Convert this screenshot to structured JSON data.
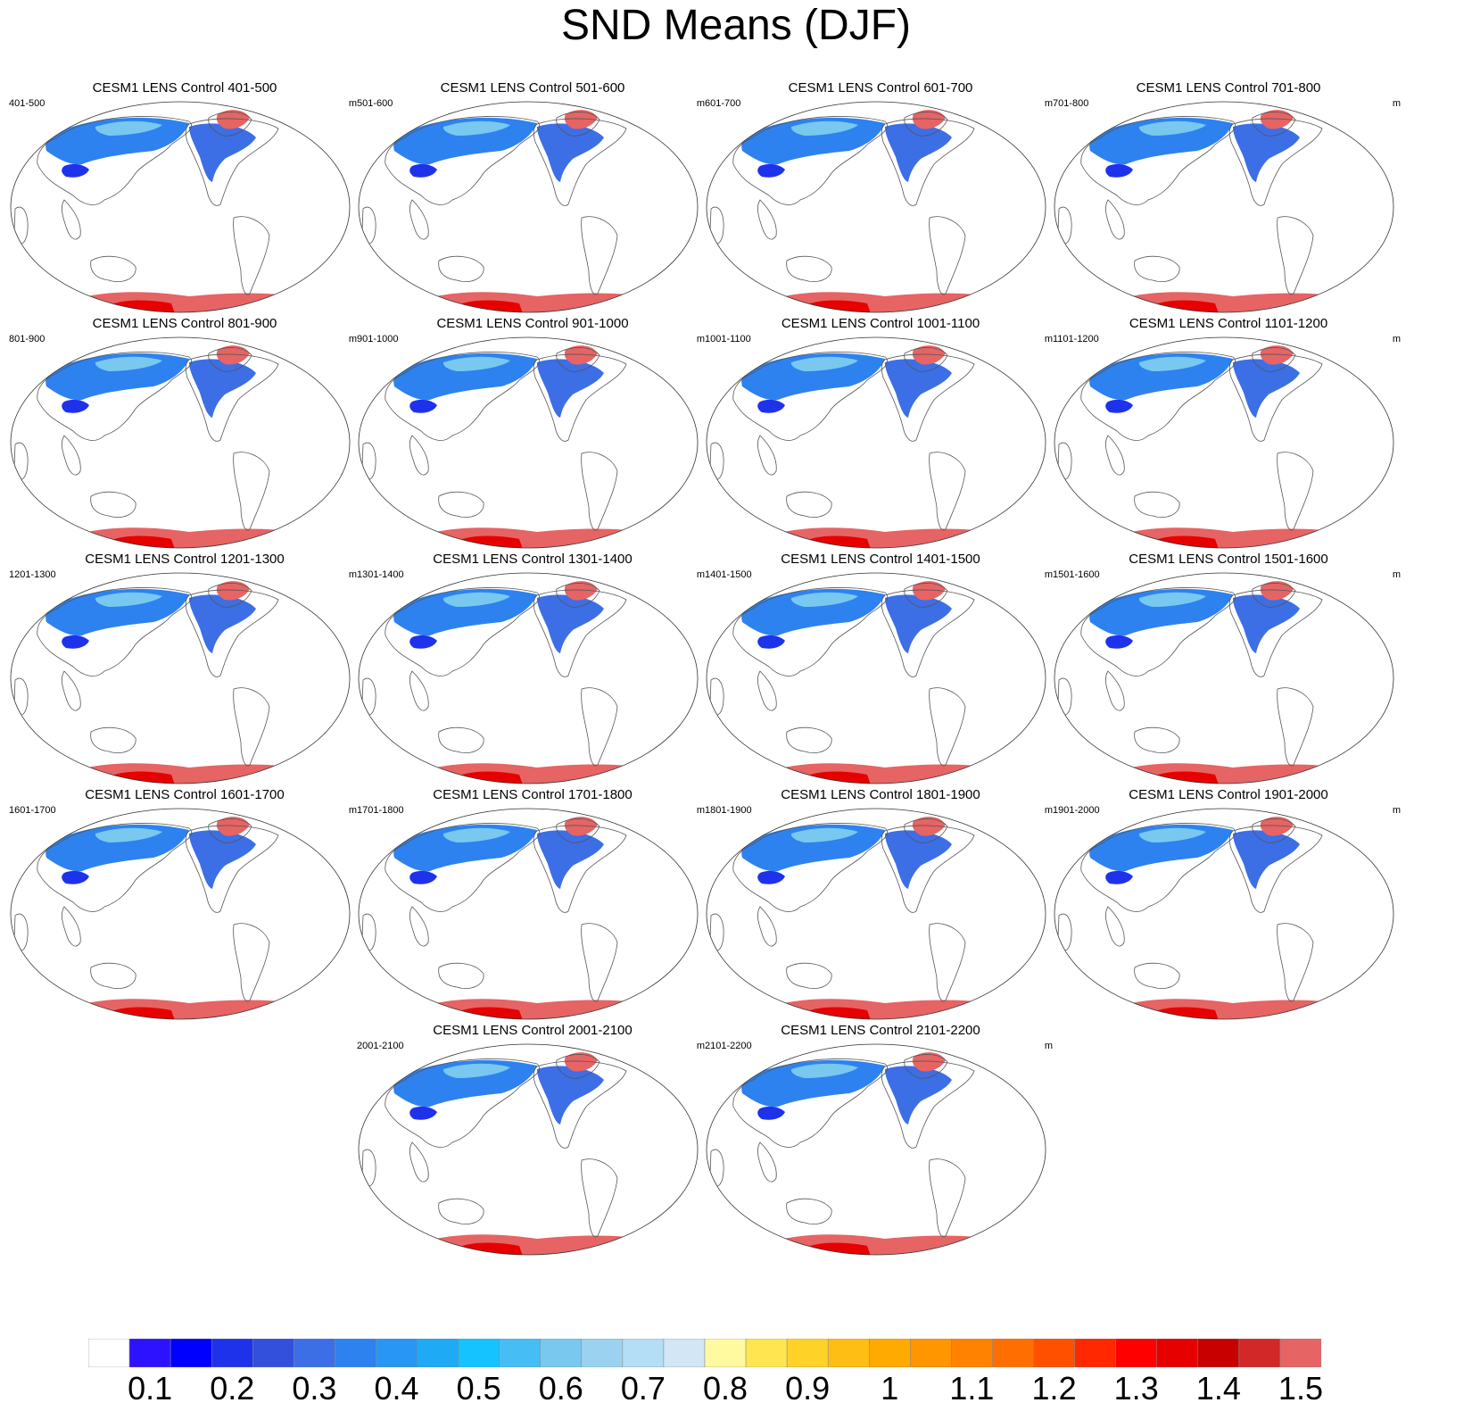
{
  "chart_data": {
    "type": "heatmap",
    "title": "SND Means (DJF)",
    "variable": "SND",
    "units": "m",
    "projection": "Robinson, centered Pacific",
    "panels": [
      {
        "title": "CESM1 LENS Control 401-500",
        "left_label": "401-500",
        "units": "m"
      },
      {
        "title": "CESM1 LENS Control 501-600",
        "left_label": "501-600",
        "units": "m"
      },
      {
        "title": "CESM1 LENS Control 601-700",
        "left_label": "601-700",
        "units": "m"
      },
      {
        "title": "CESM1 LENS Control 701-800",
        "left_label": "701-800",
        "units": "m"
      },
      {
        "title": "CESM1 LENS Control 801-900",
        "left_label": "801-900",
        "units": "m"
      },
      {
        "title": "CESM1 LENS Control 901-1000",
        "left_label": "901-1000",
        "units": "m"
      },
      {
        "title": "CESM1 LENS Control 1001-1100",
        "left_label": "1001-1100",
        "units": "m"
      },
      {
        "title": "CESM1 LENS Control 1101-1200",
        "left_label": "1101-1200",
        "units": "m"
      },
      {
        "title": "CESM1 LENS Control 1201-1300",
        "left_label": "1201-1300",
        "units": "m"
      },
      {
        "title": "CESM1 LENS Control 1301-1400",
        "left_label": "1301-1400",
        "units": "m"
      },
      {
        "title": "CESM1 LENS Control 1401-1500",
        "left_label": "1401-1500",
        "units": "m"
      },
      {
        "title": "CESM1 LENS Control 1501-1600",
        "left_label": "1501-1600",
        "units": "m"
      },
      {
        "title": "CESM1 LENS Control 1601-1700",
        "left_label": "1601-1700",
        "units": "m"
      },
      {
        "title": "CESM1 LENS Control 1701-1800",
        "left_label": "1701-1800",
        "units": "m"
      },
      {
        "title": "CESM1 LENS Control 1801-1900",
        "left_label": "1801-1900",
        "units": "m"
      },
      {
        "title": "CESM1 LENS Control 1901-2000",
        "left_label": "1901-2000",
        "units": "m"
      },
      {
        "title": "CESM1 LENS Control 2001-2100",
        "left_label": "2001-2100",
        "units": "m"
      },
      {
        "title": "CESM1 LENS Control 2101-2200",
        "left_label": "2101-2200",
        "units": "m"
      }
    ],
    "colorbar": {
      "levels": [
        "0.1",
        "0.2",
        "0.3",
        "0.4",
        "0.5",
        "0.6",
        "0.7",
        "0.8",
        "0.9",
        "1",
        "1.1",
        "1.2",
        "1.3",
        "1.4",
        "1.5"
      ],
      "colors": [
        "#ffffff",
        "#2d12ff",
        "#0000ff",
        "#1e32eb",
        "#3250dc",
        "#3c6ee6",
        "#2d82f0",
        "#2896f5",
        "#1eaaf5",
        "#14c3ff",
        "#46bef5",
        "#78c8f0",
        "#9bd2f0",
        "#b4def5",
        "#d2e6f5",
        "#fffaa0",
        "#ffe650",
        "#ffd228",
        "#ffbe14",
        "#ffaa00",
        "#ff9600",
        "#ff8200",
        "#ff6e00",
        "#ff5000",
        "#ff2800",
        "#ff0000",
        "#e60000",
        "#c80000",
        "#d22828",
        "#e66464"
      ]
    }
  }
}
